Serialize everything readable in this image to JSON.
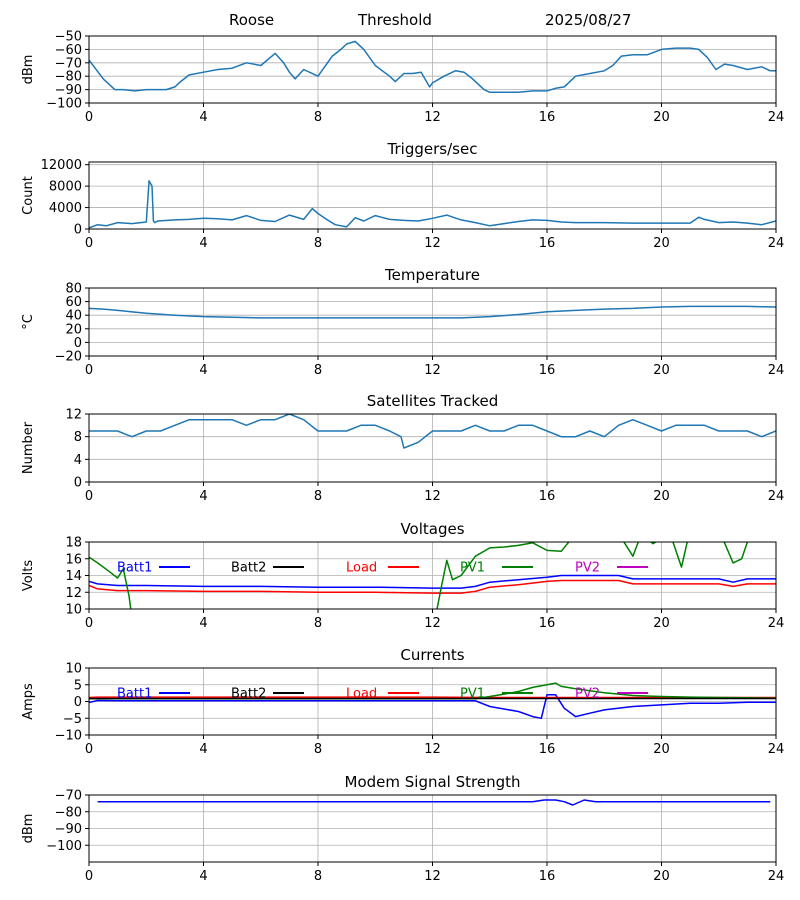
{
  "header": {
    "station": "Roose",
    "mode": "Threshold",
    "date": "2025/08/27"
  },
  "colors": {
    "default_line": "#1f77b4",
    "batt1": "#0000ff",
    "batt2": "#000000",
    "load": "#ff0000",
    "pv1": "#008000",
    "pv2": "#bf00bf",
    "grid": "#b0b0b0"
  },
  "chart_data": [
    {
      "type": "line",
      "title": "",
      "ylabel": "dBm",
      "xlim": [
        0,
        24
      ],
      "ylim": [
        -100,
        -50
      ],
      "xticks": [
        0,
        4,
        8,
        12,
        16,
        20,
        24
      ],
      "yticks": [
        -100,
        -90,
        -80,
        -70,
        -60,
        -50
      ],
      "grid": true,
      "series": [
        {
          "color": "#1f77b4",
          "x": [
            0,
            0.5,
            0.9,
            1.2,
            1.6,
            2.0,
            2.7,
            3.0,
            3.2,
            3.5,
            4.0,
            4.5,
            5.0,
            5.5,
            6.0,
            6.5,
            6.8,
            7.0,
            7.2,
            7.5,
            8.0,
            8.5,
            8.8,
            9.0,
            9.3,
            9.6,
            10.0,
            10.5,
            10.7,
            11.0,
            11.3,
            11.6,
            11.9,
            12.0,
            12.4,
            12.8,
            13.1,
            13.4,
            13.8,
            14.0,
            14.5,
            15.0,
            15.5,
            16.0,
            16.3,
            16.6,
            17.0,
            17.5,
            18.0,
            18.3,
            18.6,
            19.0,
            19.5,
            20.0,
            20.5,
            21.0,
            21.3,
            21.6,
            21.9,
            22.2,
            22.5,
            23.0,
            23.5,
            23.8,
            24
          ],
          "y": [
            -68,
            -82,
            -90,
            -90,
            -91,
            -90,
            -90,
            -88,
            -84,
            -79,
            -77,
            -75,
            -74,
            -70,
            -72,
            -63,
            -70,
            -77,
            -82,
            -75,
            -80,
            -65,
            -60,
            -56,
            -54,
            -60,
            -72,
            -80,
            -84,
            -78,
            -78,
            -77,
            -88,
            -85,
            -80,
            -76,
            -77,
            -82,
            -90,
            -92,
            -92,
            -92,
            -91,
            -91,
            -89,
            -88,
            -80,
            -78,
            -76,
            -72,
            -65,
            -64,
            -64,
            -60,
            -59,
            -59,
            -60,
            -66,
            -75,
            -71,
            -72,
            -75,
            -73,
            -76,
            -76
          ]
        }
      ]
    },
    {
      "type": "line",
      "title": "Triggers/sec",
      "ylabel": "Count",
      "xlim": [
        0,
        24
      ],
      "ylim": [
        0,
        12500
      ],
      "xticks": [
        0,
        4,
        8,
        12,
        16,
        20,
        24
      ],
      "yticks": [
        0,
        4000,
        8000,
        12000
      ],
      "grid": true,
      "series": [
        {
          "color": "#1f77b4",
          "x": [
            0,
            0.3,
            0.6,
            1.0,
            1.5,
            2.0,
            2.1,
            2.2,
            2.25,
            2.3,
            2.4,
            3.0,
            3.5,
            4.0,
            4.5,
            5.0,
            5.5,
            6.0,
            6.5,
            7.0,
            7.5,
            7.8,
            8.0,
            8.3,
            8.6,
            9.0,
            9.3,
            9.6,
            10.0,
            10.5,
            11.0,
            11.5,
            12.0,
            12.5,
            13.0,
            13.5,
            14.0,
            14.5,
            15.0,
            15.5,
            16.0,
            16.5,
            17.0,
            18.0,
            19.0,
            20.0,
            21.0,
            21.3,
            21.5,
            22.0,
            22.5,
            23.0,
            23.5,
            24
          ],
          "y": [
            200,
            800,
            600,
            1200,
            1000,
            1300,
            9000,
            8000,
            1500,
            1200,
            1500,
            1700,
            1800,
            2000,
            1900,
            1700,
            2500,
            1600,
            1400,
            2600,
            1800,
            3800,
            2900,
            1800,
            800,
            400,
            2100,
            1500,
            2500,
            1800,
            1600,
            1500,
            2000,
            2600,
            1700,
            1200,
            600,
            1000,
            1400,
            1700,
            1600,
            1300,
            1200,
            1200,
            1100,
            1100,
            1100,
            2200,
            1800,
            1200,
            1300,
            1100,
            800,
            1500
          ]
        }
      ]
    },
    {
      "type": "line",
      "title": "Temperature",
      "ylabel": "°C",
      "xlim": [
        0,
        24
      ],
      "ylim": [
        -20,
        80
      ],
      "xticks": [
        0,
        4,
        8,
        12,
        16,
        20,
        24
      ],
      "yticks": [
        -20,
        0,
        20,
        40,
        60,
        80
      ],
      "grid": true,
      "series": [
        {
          "color": "#1f77b4",
          "x": [
            0,
            0.5,
            1,
            2,
            3,
            4,
            5,
            6,
            8,
            10,
            12,
            13,
            14,
            15,
            16,
            17,
            18,
            19,
            20,
            21,
            22,
            23,
            24
          ],
          "y": [
            50,
            49,
            47,
            43,
            40,
            38,
            37,
            36,
            36,
            36,
            36,
            36,
            38,
            41,
            45,
            47,
            49,
            50,
            52,
            53,
            53,
            53,
            52
          ]
        }
      ]
    },
    {
      "type": "line",
      "title": "Satellites Tracked",
      "ylabel": "Number",
      "xlim": [
        0,
        24
      ],
      "ylim": [
        0,
        12
      ],
      "xticks": [
        0,
        4,
        8,
        12,
        16,
        20,
        24
      ],
      "yticks": [
        0,
        4,
        8,
        12
      ],
      "grid": true,
      "series": [
        {
          "color": "#1f77b4",
          "x": [
            0,
            0.5,
            1.0,
            1.5,
            2.0,
            2.5,
            3.0,
            3.5,
            4.0,
            4.5,
            5.0,
            5.5,
            6.0,
            6.5,
            7.0,
            7.5,
            8.0,
            8.5,
            9.0,
            9.5,
            10.0,
            10.5,
            10.9,
            11.0,
            11.5,
            12.0,
            12.5,
            13.0,
            13.5,
            14.0,
            14.5,
            15.0,
            15.5,
            16.0,
            16.5,
            17.0,
            17.5,
            18.0,
            18.5,
            19.0,
            19.5,
            20.0,
            20.5,
            21.0,
            21.5,
            22.0,
            22.5,
            23.0,
            23.5,
            24
          ],
          "y": [
            9,
            9,
            9,
            8,
            9,
            9,
            10,
            11,
            11,
            11,
            11,
            10,
            11,
            11,
            12,
            11,
            9,
            9,
            9,
            10,
            10,
            9,
            8,
            6,
            7,
            9,
            9,
            9,
            10,
            9,
            9,
            10,
            10,
            9,
            8,
            8,
            9,
            8,
            10,
            11,
            10,
            9,
            10,
            10,
            10,
            9,
            9,
            9,
            8,
            9
          ]
        }
      ]
    },
    {
      "type": "line",
      "title": "Voltages",
      "ylabel": "Volts",
      "xlim": [
        0,
        24
      ],
      "ylim": [
        10,
        18
      ],
      "xticks": [
        0,
        4,
        8,
        12,
        16,
        20,
        24
      ],
      "yticks": [
        10,
        12,
        14,
        16,
        18
      ],
      "grid": true,
      "legend": "top-left, single row",
      "legend_entries": [
        "Batt1",
        "Batt2",
        "Load",
        "PV1",
        "PV2"
      ],
      "series": [
        {
          "name": "Batt1",
          "color": "#0000ff",
          "x": [
            0,
            0.3,
            1,
            2,
            4,
            6,
            8,
            10,
            12,
            13,
            13.5,
            14,
            15,
            16,
            16.5,
            17.5,
            18.5,
            19,
            20,
            21,
            22,
            22.5,
            23,
            24
          ],
          "y": [
            13.3,
            13.0,
            12.8,
            12.8,
            12.7,
            12.7,
            12.6,
            12.6,
            12.5,
            12.5,
            12.7,
            13.2,
            13.5,
            13.8,
            14.0,
            14.0,
            14.0,
            13.6,
            13.6,
            13.6,
            13.6,
            13.2,
            13.6,
            13.6
          ]
        },
        {
          "name": "Load",
          "color": "#ff0000",
          "x": [
            0,
            0.3,
            1,
            2,
            4,
            6,
            8,
            10,
            12,
            13,
            13.5,
            14,
            15,
            16,
            16.5,
            17.5,
            18.5,
            19,
            20,
            21,
            22,
            22.5,
            23,
            24
          ],
          "y": [
            12.8,
            12.4,
            12.2,
            12.2,
            12.1,
            12.1,
            12.0,
            12.0,
            11.9,
            11.9,
            12.1,
            12.6,
            12.9,
            13.3,
            13.4,
            13.4,
            13.4,
            13.0,
            13.0,
            13.0,
            13.0,
            12.7,
            13.0,
            13.0
          ]
        },
        {
          "name": "PV1",
          "color": "#008000",
          "x": [
            0,
            0.3,
            0.7,
            1.0,
            1.2,
            1.4,
            1.5,
            12.1,
            12.3,
            12.5,
            12.7,
            13.0,
            13.5,
            14.0,
            14.5,
            15.0,
            15.5,
            16.0,
            16.5,
            17.0,
            17.5,
            18.0,
            18.5,
            19.0,
            19.3,
            19.7,
            20.3,
            20.7,
            21.0,
            21.5,
            22.0,
            22.5,
            22.8,
            23.0,
            23.3
          ],
          "y": [
            16.2,
            15.5,
            14.5,
            13.7,
            14.8,
            11.5,
            9.0,
            9.0,
            12.5,
            15.8,
            13.5,
            14.0,
            16.3,
            17.3,
            17.4,
            17.6,
            17.9,
            17.0,
            16.9,
            19.0,
            19.5,
            20.0,
            19.0,
            16.3,
            19.0,
            17.8,
            19.0,
            15.0,
            19.5,
            19.0,
            19.5,
            15.5,
            16.0,
            18.0,
            19.0
          ]
        }
      ]
    },
    {
      "type": "line",
      "title": "Currents",
      "ylabel": "Amps",
      "xlim": [
        0,
        24
      ],
      "ylim": [
        -10,
        10
      ],
      "xticks": [
        0,
        4,
        8,
        12,
        16,
        20,
        24
      ],
      "yticks": [
        -10,
        -5,
        0,
        5,
        10
      ],
      "grid": true,
      "legend": "top-left, single row",
      "legend_entries": [
        "Batt1",
        "Batt2",
        "Load",
        "PV1",
        "PV2"
      ],
      "series": [
        {
          "name": "Batt1",
          "color": "#0000ff",
          "x": [
            0,
            0.3,
            1,
            4,
            8,
            12,
            13.5,
            14,
            15,
            15.5,
            15.8,
            16.0,
            16.3,
            16.6,
            17.0,
            17.5,
            18.0,
            19.0,
            20.0,
            21.0,
            22.0,
            23.0,
            24
          ],
          "y": [
            -0.3,
            0.3,
            0.2,
            0.2,
            0.2,
            0.2,
            0.2,
            -1.5,
            -3.0,
            -4.5,
            -5.0,
            2.0,
            2.0,
            -2.0,
            -4.5,
            -3.5,
            -2.5,
            -1.5,
            -1.0,
            -0.5,
            -0.5,
            -0.2,
            -0.2
          ]
        },
        {
          "name": "Load",
          "color": "#ff0000",
          "x": [
            0,
            0.3,
            2,
            4,
            8,
            12,
            14,
            16,
            18,
            20,
            22,
            24
          ],
          "y": [
            1.2,
            1.3,
            1.3,
            1.3,
            1.3,
            1.3,
            1.2,
            1.2,
            1.2,
            1.2,
            1.2,
            1.2
          ]
        },
        {
          "name": "PV1",
          "color": "#008000",
          "x": [
            0,
            4,
            8,
            12,
            13.5,
            14,
            14.5,
            15,
            15.5,
            16,
            16.3,
            16.5,
            17,
            17.5,
            18,
            18.5,
            19,
            20,
            21,
            22,
            23,
            24
          ],
          "y": [
            0.8,
            0.8,
            0.8,
            0.8,
            0.8,
            1.5,
            2.2,
            3.0,
            4.2,
            5.0,
            5.5,
            4.5,
            3.8,
            3.2,
            2.6,
            2.2,
            1.8,
            1.5,
            1.3,
            1.2,
            1.1,
            1.0
          ]
        },
        {
          "name": "Batt2",
          "color": "#000000",
          "x": [
            0,
            4,
            8,
            12,
            16,
            20,
            24
          ],
          "y": [
            0.9,
            0.9,
            0.9,
            0.9,
            0.9,
            0.9,
            0.9
          ]
        }
      ]
    },
    {
      "type": "line",
      "title": "Modem Signal Strength",
      "ylabel": "dBm",
      "xlim": [
        0,
        24
      ],
      "ylim": [
        -110,
        -70
      ],
      "xticks": [
        0,
        4,
        8,
        12,
        16,
        20,
        24
      ],
      "yticks": [
        -100,
        -90,
        -80,
        -70
      ],
      "grid": true,
      "series": [
        {
          "color": "#0000ff",
          "x": [
            0.3,
            2,
            4,
            8,
            12,
            15.5,
            15.9,
            16.3,
            16.6,
            16.9,
            17.3,
            17.7,
            18,
            20,
            22,
            23.8
          ],
          "y": [
            -74,
            -74,
            -74,
            -74,
            -74,
            -74,
            -73,
            -73,
            -74,
            -76,
            -73,
            -74,
            -74,
            -74,
            -74,
            -74
          ]
        }
      ]
    }
  ]
}
